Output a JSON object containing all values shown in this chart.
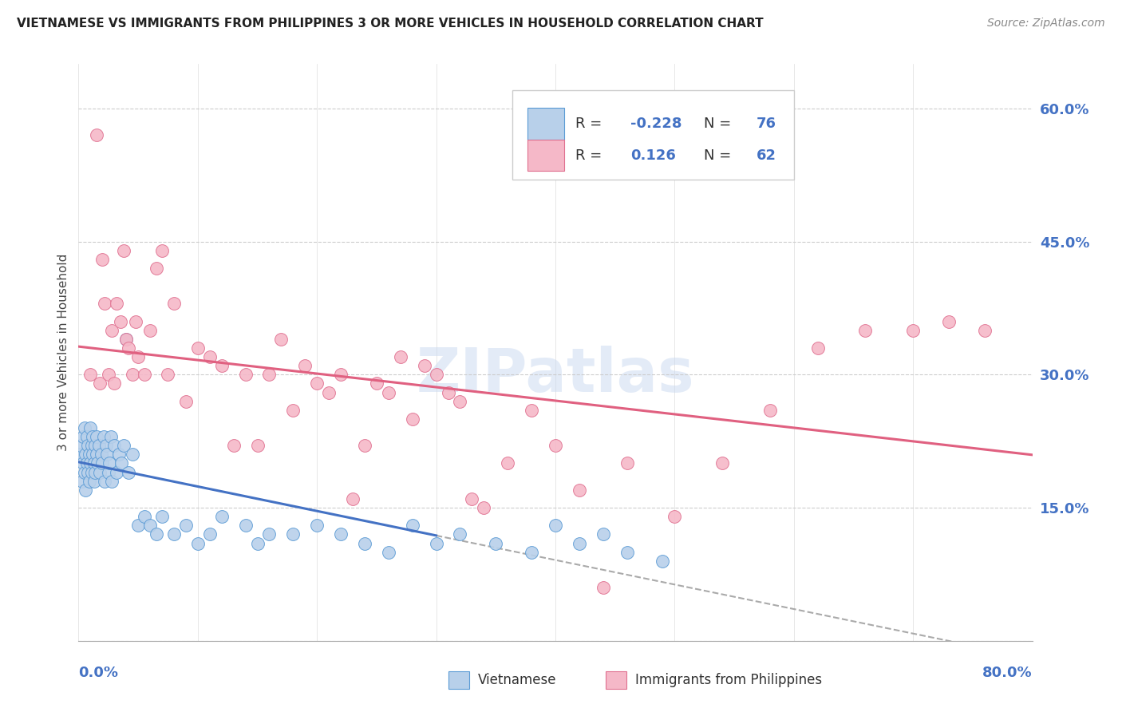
{
  "title": "VIETNAMESE VS IMMIGRANTS FROM PHILIPPINES 3 OR MORE VEHICLES IN HOUSEHOLD CORRELATION CHART",
  "source": "Source: ZipAtlas.com",
  "ylabel": "3 or more Vehicles in Household",
  "legend_label1": "Vietnamese",
  "legend_label2": "Immigrants from Philippines",
  "R1": "-0.228",
  "N1": "76",
  "R2": "0.126",
  "N2": "62",
  "watermark": "ZIPatlas",
  "color_blue_fill": "#b8d0ea",
  "color_pink_fill": "#f5b8c8",
  "color_blue_edge": "#5b9bd5",
  "color_pink_edge": "#e07090",
  "color_blue_line": "#4472C4",
  "color_pink_line": "#e06080",
  "color_text_blue": "#4472C4",
  "xmin": 0.0,
  "xmax": 0.8,
  "ymin": 0.0,
  "ymax": 0.65,
  "ytick_vals": [
    0.0,
    0.15,
    0.3,
    0.45,
    0.6
  ],
  "ytick_labels": [
    "",
    "15.0%",
    "30.0%",
    "45.0%",
    "60.0%"
  ],
  "blue_x": [
    0.001,
    0.002,
    0.003,
    0.004,
    0.004,
    0.005,
    0.005,
    0.006,
    0.006,
    0.007,
    0.007,
    0.008,
    0.008,
    0.009,
    0.009,
    0.01,
    0.01,
    0.011,
    0.011,
    0.012,
    0.012,
    0.013,
    0.013,
    0.014,
    0.014,
    0.015,
    0.015,
    0.016,
    0.017,
    0.018,
    0.019,
    0.02,
    0.021,
    0.022,
    0.023,
    0.024,
    0.025,
    0.026,
    0.027,
    0.028,
    0.03,
    0.032,
    0.034,
    0.036,
    0.038,
    0.04,
    0.042,
    0.045,
    0.05,
    0.055,
    0.06,
    0.065,
    0.07,
    0.08,
    0.09,
    0.1,
    0.11,
    0.12,
    0.14,
    0.15,
    0.16,
    0.18,
    0.2,
    0.22,
    0.24,
    0.26,
    0.28,
    0.3,
    0.32,
    0.35,
    0.38,
    0.4,
    0.42,
    0.44,
    0.46,
    0.49
  ],
  "blue_y": [
    0.21,
    0.22,
    0.18,
    0.23,
    0.2,
    0.19,
    0.24,
    0.17,
    0.21,
    0.2,
    0.23,
    0.19,
    0.22,
    0.18,
    0.21,
    0.24,
    0.2,
    0.22,
    0.19,
    0.21,
    0.23,
    0.18,
    0.2,
    0.22,
    0.19,
    0.23,
    0.21,
    0.2,
    0.22,
    0.19,
    0.21,
    0.2,
    0.23,
    0.18,
    0.22,
    0.21,
    0.19,
    0.2,
    0.23,
    0.18,
    0.22,
    0.19,
    0.21,
    0.2,
    0.22,
    0.34,
    0.19,
    0.21,
    0.13,
    0.14,
    0.13,
    0.12,
    0.14,
    0.12,
    0.13,
    0.11,
    0.12,
    0.14,
    0.13,
    0.11,
    0.12,
    0.12,
    0.13,
    0.12,
    0.11,
    0.1,
    0.13,
    0.11,
    0.12,
    0.11,
    0.1,
    0.13,
    0.11,
    0.12,
    0.1,
    0.09
  ],
  "pink_x": [
    0.01,
    0.015,
    0.018,
    0.02,
    0.022,
    0.025,
    0.028,
    0.03,
    0.032,
    0.035,
    0.038,
    0.04,
    0.042,
    0.045,
    0.048,
    0.05,
    0.055,
    0.06,
    0.065,
    0.07,
    0.075,
    0.08,
    0.09,
    0.1,
    0.11,
    0.12,
    0.13,
    0.14,
    0.15,
    0.16,
    0.17,
    0.18,
    0.19,
    0.2,
    0.21,
    0.22,
    0.23,
    0.24,
    0.25,
    0.26,
    0.27,
    0.28,
    0.29,
    0.3,
    0.31,
    0.32,
    0.33,
    0.34,
    0.36,
    0.38,
    0.4,
    0.42,
    0.44,
    0.46,
    0.5,
    0.54,
    0.58,
    0.62,
    0.66,
    0.7,
    0.73,
    0.76
  ],
  "pink_y": [
    0.3,
    0.57,
    0.29,
    0.43,
    0.38,
    0.3,
    0.35,
    0.29,
    0.38,
    0.36,
    0.44,
    0.34,
    0.33,
    0.3,
    0.36,
    0.32,
    0.3,
    0.35,
    0.42,
    0.44,
    0.3,
    0.38,
    0.27,
    0.33,
    0.32,
    0.31,
    0.22,
    0.3,
    0.22,
    0.3,
    0.34,
    0.26,
    0.31,
    0.29,
    0.28,
    0.3,
    0.16,
    0.22,
    0.29,
    0.28,
    0.32,
    0.25,
    0.31,
    0.3,
    0.28,
    0.27,
    0.16,
    0.15,
    0.2,
    0.26,
    0.22,
    0.17,
    0.06,
    0.2,
    0.14,
    0.2,
    0.26,
    0.33,
    0.35,
    0.35,
    0.36,
    0.35
  ]
}
